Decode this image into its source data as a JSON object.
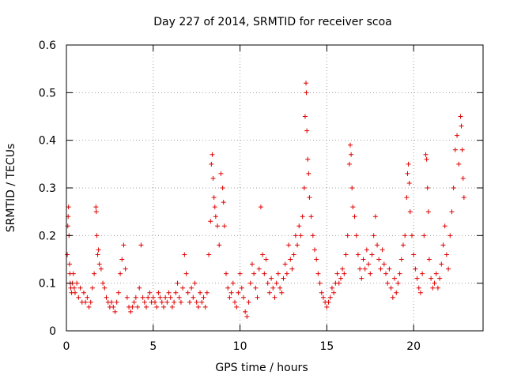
{
  "chart_data": {
    "type": "scatter",
    "title": "Day 227 of 2014, SRMTID for receiver scoa",
    "xlabel": "GPS time / hours",
    "ylabel": "SRMTID / TECUs",
    "xlim": [
      0,
      24
    ],
    "ylim": [
      0,
      0.6
    ],
    "x_ticks": [
      0,
      5,
      10,
      15,
      20
    ],
    "x_tick_labels": [
      "0",
      "5",
      "10",
      "15",
      "20"
    ],
    "y_ticks": [
      0,
      0.1,
      0.2,
      0.3,
      0.4,
      0.5,
      0.6
    ],
    "y_tick_labels": [
      "0",
      "0.1",
      "0.2",
      "0.3",
      "0.4",
      "0.5",
      "0.6"
    ],
    "grid": true,
    "marker": "+",
    "color": "#e00000",
    "series": [
      {
        "name": "SRMTID",
        "points": [
          [
            0.05,
            0.16
          ],
          [
            0.08,
            0.22
          ],
          [
            0.1,
            0.24
          ],
          [
            0.12,
            0.26
          ],
          [
            0.15,
            0.2
          ],
          [
            0.18,
            0.14
          ],
          [
            0.2,
            0.12
          ],
          [
            0.22,
            0.1
          ],
          [
            0.25,
            0.09
          ],
          [
            0.3,
            0.08
          ],
          [
            0.35,
            0.1
          ],
          [
            0.4,
            0.12
          ],
          [
            0.45,
            0.09
          ],
          [
            0.5,
            0.08
          ],
          [
            0.6,
            0.1
          ],
          [
            0.7,
            0.07
          ],
          [
            0.8,
            0.09
          ],
          [
            0.9,
            0.06
          ],
          [
            1.0,
            0.08
          ],
          [
            1.1,
            0.06
          ],
          [
            1.2,
            0.07
          ],
          [
            1.3,
            0.05
          ],
          [
            1.4,
            0.06
          ],
          [
            1.5,
            0.09
          ],
          [
            1.6,
            0.12
          ],
          [
            1.7,
            0.26
          ],
          [
            1.72,
            0.25
          ],
          [
            1.75,
            0.2
          ],
          [
            1.8,
            0.16
          ],
          [
            1.85,
            0.17
          ],
          [
            1.9,
            0.14
          ],
          [
            2.0,
            0.13
          ],
          [
            2.1,
            0.1
          ],
          [
            2.2,
            0.09
          ],
          [
            2.3,
            0.07
          ],
          [
            2.4,
            0.06
          ],
          [
            2.5,
            0.05
          ],
          [
            2.6,
            0.06
          ],
          [
            2.7,
            0.05
          ],
          [
            2.8,
            0.04
          ],
          [
            2.9,
            0.06
          ],
          [
            3.0,
            0.08
          ],
          [
            3.1,
            0.12
          ],
          [
            3.2,
            0.15
          ],
          [
            3.3,
            0.18
          ],
          [
            3.4,
            0.13
          ],
          [
            3.5,
            0.07
          ],
          [
            3.6,
            0.05
          ],
          [
            3.7,
            0.04
          ],
          [
            3.8,
            0.05
          ],
          [
            3.9,
            0.06
          ],
          [
            4.0,
            0.07
          ],
          [
            4.1,
            0.05
          ],
          [
            4.2,
            0.09
          ],
          [
            4.3,
            0.18
          ],
          [
            4.4,
            0.07
          ],
          [
            4.5,
            0.06
          ],
          [
            4.6,
            0.05
          ],
          [
            4.7,
            0.07
          ],
          [
            4.8,
            0.08
          ],
          [
            4.9,
            0.06
          ],
          [
            5.0,
            0.07
          ],
          [
            5.1,
            0.06
          ],
          [
            5.2,
            0.05
          ],
          [
            5.3,
            0.08
          ],
          [
            5.4,
            0.07
          ],
          [
            5.5,
            0.06
          ],
          [
            5.6,
            0.05
          ],
          [
            5.7,
            0.07
          ],
          [
            5.8,
            0.06
          ],
          [
            5.9,
            0.08
          ],
          [
            6.0,
            0.07
          ],
          [
            6.1,
            0.05
          ],
          [
            6.2,
            0.06
          ],
          [
            6.3,
            0.08
          ],
          [
            6.4,
            0.1
          ],
          [
            6.5,
            0.07
          ],
          [
            6.6,
            0.06
          ],
          [
            6.7,
            0.09
          ],
          [
            6.8,
            0.16
          ],
          [
            6.9,
            0.12
          ],
          [
            7.0,
            0.08
          ],
          [
            7.1,
            0.06
          ],
          [
            7.2,
            0.09
          ],
          [
            7.3,
            0.07
          ],
          [
            7.4,
            0.1
          ],
          [
            7.5,
            0.06
          ],
          [
            7.6,
            0.05
          ],
          [
            7.7,
            0.08
          ],
          [
            7.8,
            0.06
          ],
          [
            7.9,
            0.07
          ],
          [
            8.0,
            0.05
          ],
          [
            8.1,
            0.08
          ],
          [
            8.2,
            0.16
          ],
          [
            8.3,
            0.23
          ],
          [
            8.35,
            0.35
          ],
          [
            8.4,
            0.37
          ],
          [
            8.45,
            0.32
          ],
          [
            8.5,
            0.28
          ],
          [
            8.55,
            0.26
          ],
          [
            8.6,
            0.24
          ],
          [
            8.7,
            0.22
          ],
          [
            8.8,
            0.18
          ],
          [
            8.9,
            0.33
          ],
          [
            9.0,
            0.3
          ],
          [
            9.05,
            0.27
          ],
          [
            9.1,
            0.22
          ],
          [
            9.2,
            0.12
          ],
          [
            9.3,
            0.09
          ],
          [
            9.4,
            0.07
          ],
          [
            9.5,
            0.08
          ],
          [
            9.6,
            0.1
          ],
          [
            9.7,
            0.06
          ],
          [
            9.8,
            0.05
          ],
          [
            9.9,
            0.08
          ],
          [
            10.0,
            0.12
          ],
          [
            10.1,
            0.09
          ],
          [
            10.2,
            0.07
          ],
          [
            10.3,
            0.04
          ],
          [
            10.4,
            0.03
          ],
          [
            10.5,
            0.06
          ],
          [
            10.6,
            0.1
          ],
          [
            10.7,
            0.14
          ],
          [
            10.8,
            0.12
          ],
          [
            10.9,
            0.09
          ],
          [
            11.0,
            0.07
          ],
          [
            11.1,
            0.13
          ],
          [
            11.2,
            0.26
          ],
          [
            11.3,
            0.16
          ],
          [
            11.4,
            0.12
          ],
          [
            11.5,
            0.15
          ],
          [
            11.6,
            0.1
          ],
          [
            11.7,
            0.08
          ],
          [
            11.8,
            0.11
          ],
          [
            11.9,
            0.09
          ],
          [
            12.0,
            0.07
          ],
          [
            12.1,
            0.1
          ],
          [
            12.2,
            0.12
          ],
          [
            12.3,
            0.09
          ],
          [
            12.4,
            0.08
          ],
          [
            12.5,
            0.11
          ],
          [
            12.6,
            0.14
          ],
          [
            12.7,
            0.12
          ],
          [
            12.8,
            0.18
          ],
          [
            12.9,
            0.15
          ],
          [
            13.0,
            0.13
          ],
          [
            13.1,
            0.16
          ],
          [
            13.2,
            0.2
          ],
          [
            13.3,
            0.18
          ],
          [
            13.4,
            0.22
          ],
          [
            13.5,
            0.2
          ],
          [
            13.6,
            0.24
          ],
          [
            13.7,
            0.3
          ],
          [
            13.75,
            0.45
          ],
          [
            13.8,
            0.52
          ],
          [
            13.82,
            0.5
          ],
          [
            13.85,
            0.42
          ],
          [
            13.9,
            0.36
          ],
          [
            13.95,
            0.33
          ],
          [
            14.0,
            0.28
          ],
          [
            14.1,
            0.24
          ],
          [
            14.2,
            0.2
          ],
          [
            14.3,
            0.17
          ],
          [
            14.4,
            0.15
          ],
          [
            14.5,
            0.12
          ],
          [
            14.6,
            0.1
          ],
          [
            14.7,
            0.08
          ],
          [
            14.8,
            0.07
          ],
          [
            14.9,
            0.06
          ],
          [
            15.0,
            0.05
          ],
          [
            15.1,
            0.06
          ],
          [
            15.2,
            0.07
          ],
          [
            15.3,
            0.09
          ],
          [
            15.4,
            0.08
          ],
          [
            15.5,
            0.1
          ],
          [
            15.6,
            0.12
          ],
          [
            15.7,
            0.1
          ],
          [
            15.8,
            0.11
          ],
          [
            15.9,
            0.13
          ],
          [
            16.0,
            0.12
          ],
          [
            16.1,
            0.16
          ],
          [
            16.2,
            0.2
          ],
          [
            16.3,
            0.35
          ],
          [
            16.35,
            0.39
          ],
          [
            16.4,
            0.37
          ],
          [
            16.45,
            0.3
          ],
          [
            16.5,
            0.26
          ],
          [
            16.6,
            0.24
          ],
          [
            16.7,
            0.2
          ],
          [
            16.8,
            0.16
          ],
          [
            16.9,
            0.13
          ],
          [
            17.0,
            0.11
          ],
          [
            17.1,
            0.15
          ],
          [
            17.2,
            0.13
          ],
          [
            17.3,
            0.17
          ],
          [
            17.4,
            0.14
          ],
          [
            17.5,
            0.12
          ],
          [
            17.6,
            0.16
          ],
          [
            17.7,
            0.2
          ],
          [
            17.8,
            0.24
          ],
          [
            17.9,
            0.18
          ],
          [
            18.0,
            0.15
          ],
          [
            18.1,
            0.13
          ],
          [
            18.2,
            0.17
          ],
          [
            18.3,
            0.14
          ],
          [
            18.4,
            0.12
          ],
          [
            18.5,
            0.1
          ],
          [
            18.6,
            0.13
          ],
          [
            18.7,
            0.09
          ],
          [
            18.8,
            0.07
          ],
          [
            18.9,
            0.11
          ],
          [
            19.0,
            0.08
          ],
          [
            19.1,
            0.1
          ],
          [
            19.2,
            0.12
          ],
          [
            19.3,
            0.15
          ],
          [
            19.4,
            0.18
          ],
          [
            19.5,
            0.2
          ],
          [
            19.6,
            0.28
          ],
          [
            19.65,
            0.33
          ],
          [
            19.7,
            0.35
          ],
          [
            19.75,
            0.31
          ],
          [
            19.8,
            0.25
          ],
          [
            19.9,
            0.2
          ],
          [
            20.0,
            0.16
          ],
          [
            20.1,
            0.13
          ],
          [
            20.2,
            0.11
          ],
          [
            20.3,
            0.09
          ],
          [
            20.4,
            0.08
          ],
          [
            20.5,
            0.12
          ],
          [
            20.6,
            0.2
          ],
          [
            20.7,
            0.37
          ],
          [
            20.75,
            0.36
          ],
          [
            20.8,
            0.3
          ],
          [
            20.85,
            0.25
          ],
          [
            20.9,
            0.15
          ],
          [
            21.0,
            0.11
          ],
          [
            21.1,
            0.09
          ],
          [
            21.2,
            0.1
          ],
          [
            21.3,
            0.12
          ],
          [
            21.4,
            0.09
          ],
          [
            21.5,
            0.11
          ],
          [
            21.6,
            0.14
          ],
          [
            21.7,
            0.18
          ],
          [
            21.8,
            0.22
          ],
          [
            21.9,
            0.16
          ],
          [
            22.0,
            0.13
          ],
          [
            22.1,
            0.2
          ],
          [
            22.2,
            0.25
          ],
          [
            22.3,
            0.3
          ],
          [
            22.4,
            0.38
          ],
          [
            22.5,
            0.41
          ],
          [
            22.6,
            0.35
          ],
          [
            22.7,
            0.45
          ],
          [
            22.75,
            0.43
          ],
          [
            22.8,
            0.38
          ],
          [
            22.85,
            0.32
          ],
          [
            22.9,
            0.28
          ]
        ]
      }
    ]
  }
}
